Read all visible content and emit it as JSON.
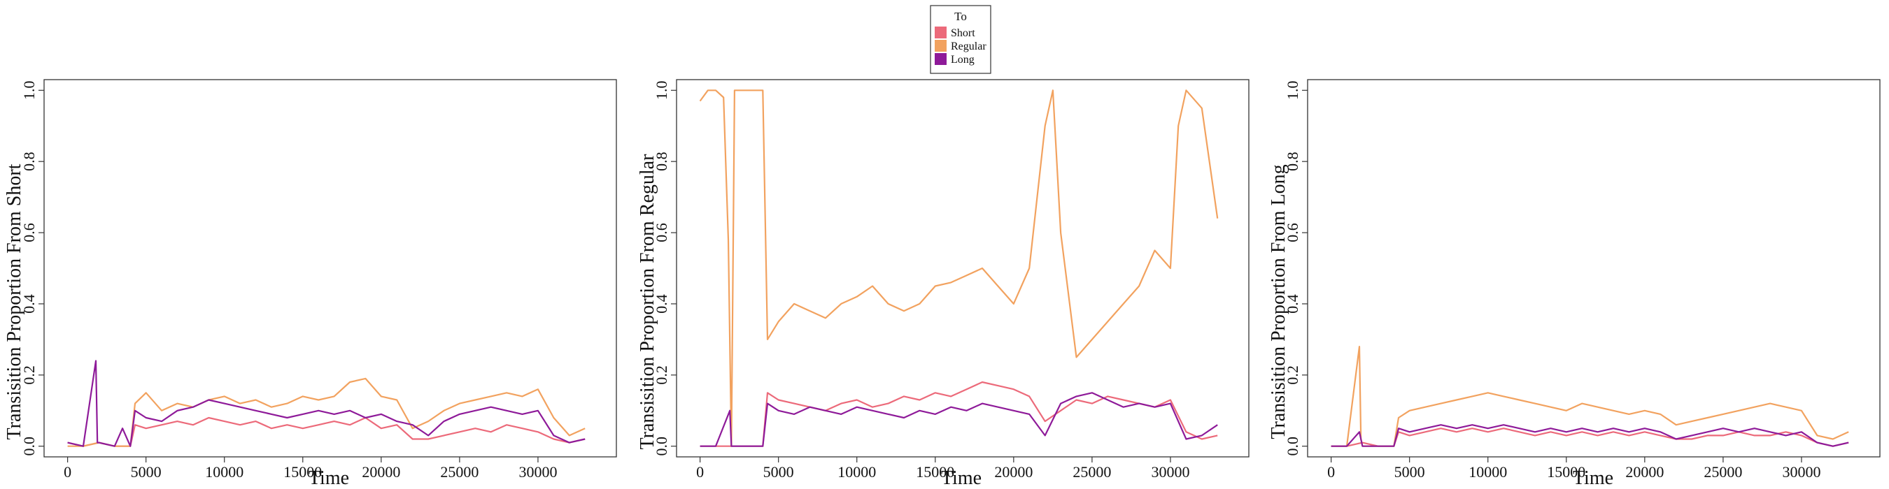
{
  "legend": {
    "title": "To",
    "entries": [
      {
        "label": "Short",
        "color": "#EC6A7A"
      },
      {
        "label": "Regular",
        "color": "#F2A25F"
      },
      {
        "label": "Long",
        "color": "#8E1A99"
      }
    ]
  },
  "chart_data": [
    {
      "type": "line",
      "title": "",
      "xlabel": "Time",
      "ylabel": "Transisition Proportion From Short",
      "xlim": [
        -1500,
        35000
      ],
      "ylim": [
        -0.03,
        1.03
      ],
      "xticks": [
        0,
        5000,
        10000,
        15000,
        20000,
        25000,
        30000
      ],
      "yticks": [
        "0.0",
        "0.2",
        "0.4",
        "0.6",
        "0.8",
        "1.0"
      ],
      "grid": false,
      "series": [
        {
          "name": "Short",
          "color": "#EC6A7A",
          "x": [
            0,
            1000,
            2000,
            3000,
            4000,
            4300,
            5000,
            6000,
            7000,
            8000,
            9000,
            10000,
            11000,
            12000,
            13000,
            14000,
            15000,
            16000,
            17000,
            18000,
            19000,
            20000,
            21000,
            22000,
            23000,
            24000,
            25000,
            26000,
            27000,
            28000,
            29000,
            30000,
            31000,
            32000,
            33000
          ],
          "y": [
            0.01,
            0.0,
            0.01,
            0.0,
            0.0,
            0.06,
            0.05,
            0.06,
            0.07,
            0.06,
            0.08,
            0.07,
            0.06,
            0.07,
            0.05,
            0.06,
            0.05,
            0.06,
            0.07,
            0.06,
            0.08,
            0.05,
            0.06,
            0.02,
            0.02,
            0.03,
            0.04,
            0.05,
            0.04,
            0.06,
            0.05,
            0.04,
            0.02,
            0.01,
            0.02
          ]
        },
        {
          "name": "Regular",
          "color": "#F2A25F",
          "x": [
            0,
            1000,
            2000,
            3000,
            4000,
            4300,
            5000,
            6000,
            7000,
            8000,
            9000,
            10000,
            11000,
            12000,
            13000,
            14000,
            15000,
            16000,
            17000,
            18000,
            19000,
            20000,
            21000,
            22000,
            23000,
            24000,
            25000,
            26000,
            27000,
            28000,
            29000,
            30000,
            31000,
            32000,
            33000
          ],
          "y": [
            0.0,
            0.0,
            0.01,
            0.0,
            0.0,
            0.12,
            0.15,
            0.1,
            0.12,
            0.11,
            0.13,
            0.14,
            0.12,
            0.13,
            0.11,
            0.12,
            0.14,
            0.13,
            0.14,
            0.18,
            0.19,
            0.14,
            0.13,
            0.05,
            0.07,
            0.1,
            0.12,
            0.13,
            0.14,
            0.15,
            0.14,
            0.16,
            0.08,
            0.03,
            0.05
          ]
        },
        {
          "name": "Long",
          "color": "#8E1A99",
          "x": [
            0,
            1000,
            1800,
            1900,
            2000,
            3000,
            3500,
            4000,
            4300,
            5000,
            6000,
            7000,
            8000,
            9000,
            10000,
            11000,
            12000,
            13000,
            14000,
            15000,
            16000,
            17000,
            18000,
            19000,
            20000,
            21000,
            22000,
            23000,
            24000,
            25000,
            26000,
            27000,
            28000,
            29000,
            30000,
            31000,
            32000,
            33000
          ],
          "y": [
            0.01,
            0.0,
            0.24,
            0.01,
            0.01,
            0.0,
            0.05,
            0.0,
            0.1,
            0.08,
            0.07,
            0.1,
            0.11,
            0.13,
            0.12,
            0.11,
            0.1,
            0.09,
            0.08,
            0.09,
            0.1,
            0.09,
            0.1,
            0.08,
            0.09,
            0.07,
            0.06,
            0.03,
            0.07,
            0.09,
            0.1,
            0.11,
            0.1,
            0.09,
            0.1,
            0.03,
            0.01,
            0.02
          ]
        }
      ]
    },
    {
      "type": "line",
      "title": "",
      "xlabel": "Time",
      "ylabel": "Transisition Proportion From Regular",
      "xlim": [
        -1500,
        35000
      ],
      "ylim": [
        -0.03,
        1.03
      ],
      "xticks": [
        0,
        5000,
        10000,
        15000,
        20000,
        25000,
        30000
      ],
      "yticks": [
        "0.0",
        "0.2",
        "0.4",
        "0.6",
        "0.8",
        "1.0"
      ],
      "grid": false,
      "series": [
        {
          "name": "Short",
          "color": "#EC6A7A",
          "x": [
            0,
            1000,
            2000,
            3000,
            4000,
            4300,
            5000,
            6000,
            7000,
            8000,
            9000,
            10000,
            11000,
            12000,
            13000,
            14000,
            15000,
            16000,
            17000,
            18000,
            19000,
            20000,
            21000,
            22000,
            23000,
            24000,
            25000,
            26000,
            27000,
            28000,
            29000,
            30000,
            31000,
            32000,
            33000
          ],
          "y": [
            0.0,
            0.0,
            0.0,
            0.0,
            0.0,
            0.15,
            0.13,
            0.12,
            0.11,
            0.1,
            0.12,
            0.13,
            0.11,
            0.12,
            0.14,
            0.13,
            0.15,
            0.14,
            0.16,
            0.18,
            0.17,
            0.16,
            0.14,
            0.07,
            0.1,
            0.13,
            0.12,
            0.14,
            0.13,
            0.12,
            0.11,
            0.13,
            0.04,
            0.02,
            0.03
          ]
        },
        {
          "name": "Regular",
          "color": "#F2A25F",
          "x": [
            0,
            500,
            1000,
            1500,
            1800,
            2000,
            2200,
            3000,
            4000,
            4300,
            5000,
            6000,
            7000,
            8000,
            9000,
            10000,
            11000,
            12000,
            13000,
            14000,
            15000,
            16000,
            17000,
            18000,
            19000,
            20000,
            21000,
            22000,
            22500,
            23000,
            24000,
            25000,
            26000,
            27000,
            28000,
            29000,
            30000,
            30500,
            31000,
            32000,
            33000
          ],
          "y": [
            0.97,
            1.0,
            1.0,
            0.98,
            0.58,
            0.0,
            1.0,
            1.0,
            1.0,
            0.3,
            0.35,
            0.4,
            0.38,
            0.36,
            0.4,
            0.42,
            0.45,
            0.4,
            0.38,
            0.4,
            0.45,
            0.46,
            0.48,
            0.5,
            0.45,
            0.4,
            0.5,
            0.9,
            1.0,
            0.6,
            0.25,
            0.3,
            0.35,
            0.4,
            0.45,
            0.55,
            0.5,
            0.9,
            1.0,
            0.95,
            0.64
          ]
        },
        {
          "name": "Long",
          "color": "#8E1A99",
          "x": [
            0,
            1000,
            1900,
            2000,
            3000,
            4000,
            4300,
            5000,
            6000,
            7000,
            8000,
            9000,
            10000,
            11000,
            12000,
            13000,
            14000,
            15000,
            16000,
            17000,
            18000,
            19000,
            20000,
            21000,
            22000,
            23000,
            24000,
            25000,
            26000,
            27000,
            28000,
            29000,
            30000,
            31000,
            32000,
            33000
          ],
          "y": [
            0.0,
            0.0,
            0.1,
            0.0,
            0.0,
            0.0,
            0.12,
            0.1,
            0.09,
            0.11,
            0.1,
            0.09,
            0.11,
            0.1,
            0.09,
            0.08,
            0.1,
            0.09,
            0.11,
            0.1,
            0.12,
            0.11,
            0.1,
            0.09,
            0.03,
            0.12,
            0.14,
            0.15,
            0.13,
            0.11,
            0.12,
            0.11,
            0.12,
            0.02,
            0.03,
            0.06
          ]
        }
      ]
    },
    {
      "type": "line",
      "title": "",
      "xlabel": "Time",
      "ylabel": "Transisition Proportion From Long",
      "xlim": [
        -1500,
        35000
      ],
      "ylim": [
        -0.03,
        1.03
      ],
      "xticks": [
        0,
        5000,
        10000,
        15000,
        20000,
        25000,
        30000
      ],
      "yticks": [
        "0.0",
        "0.2",
        "0.4",
        "0.6",
        "0.8",
        "1.0"
      ],
      "grid": false,
      "series": [
        {
          "name": "Short",
          "color": "#EC6A7A",
          "x": [
            0,
            1000,
            2000,
            3000,
            4000,
            4300,
            5000,
            6000,
            7000,
            8000,
            9000,
            10000,
            11000,
            12000,
            13000,
            14000,
            15000,
            16000,
            17000,
            18000,
            19000,
            20000,
            21000,
            22000,
            23000,
            24000,
            25000,
            26000,
            27000,
            28000,
            29000,
            30000,
            31000,
            32000,
            33000
          ],
          "y": [
            0.0,
            0.0,
            0.01,
            0.0,
            0.0,
            0.04,
            0.03,
            0.04,
            0.05,
            0.04,
            0.05,
            0.04,
            0.05,
            0.04,
            0.03,
            0.04,
            0.03,
            0.04,
            0.03,
            0.04,
            0.03,
            0.04,
            0.03,
            0.02,
            0.02,
            0.03,
            0.03,
            0.04,
            0.03,
            0.03,
            0.04,
            0.03,
            0.01,
            0.0,
            0.01
          ]
        },
        {
          "name": "Regular",
          "color": "#F2A25F",
          "x": [
            0,
            1000,
            1800,
            1900,
            2000,
            3000,
            4000,
            4300,
            5000,
            6000,
            7000,
            8000,
            9000,
            10000,
            11000,
            12000,
            13000,
            14000,
            15000,
            16000,
            17000,
            18000,
            19000,
            20000,
            21000,
            22000,
            23000,
            24000,
            25000,
            26000,
            27000,
            28000,
            29000,
            30000,
            31000,
            32000,
            33000
          ],
          "y": [
            0.0,
            0.0,
            0.28,
            0.02,
            0.0,
            0.0,
            0.0,
            0.08,
            0.1,
            0.11,
            0.12,
            0.13,
            0.14,
            0.15,
            0.14,
            0.13,
            0.12,
            0.11,
            0.1,
            0.12,
            0.11,
            0.1,
            0.09,
            0.1,
            0.09,
            0.06,
            0.07,
            0.08,
            0.09,
            0.1,
            0.11,
            0.12,
            0.11,
            0.1,
            0.03,
            0.02,
            0.04
          ]
        },
        {
          "name": "Long",
          "color": "#8E1A99",
          "x": [
            0,
            1000,
            1800,
            2000,
            3000,
            4000,
            4300,
            5000,
            6000,
            7000,
            8000,
            9000,
            10000,
            11000,
            12000,
            13000,
            14000,
            15000,
            16000,
            17000,
            18000,
            19000,
            20000,
            21000,
            22000,
            23000,
            24000,
            25000,
            26000,
            27000,
            28000,
            29000,
            30000,
            31000,
            32000,
            33000
          ],
          "y": [
            0.0,
            0.0,
            0.04,
            0.0,
            0.0,
            0.0,
            0.05,
            0.04,
            0.05,
            0.06,
            0.05,
            0.06,
            0.05,
            0.06,
            0.05,
            0.04,
            0.05,
            0.04,
            0.05,
            0.04,
            0.05,
            0.04,
            0.05,
            0.04,
            0.02,
            0.03,
            0.04,
            0.05,
            0.04,
            0.05,
            0.04,
            0.03,
            0.04,
            0.01,
            0.0,
            0.01
          ]
        }
      ]
    }
  ]
}
